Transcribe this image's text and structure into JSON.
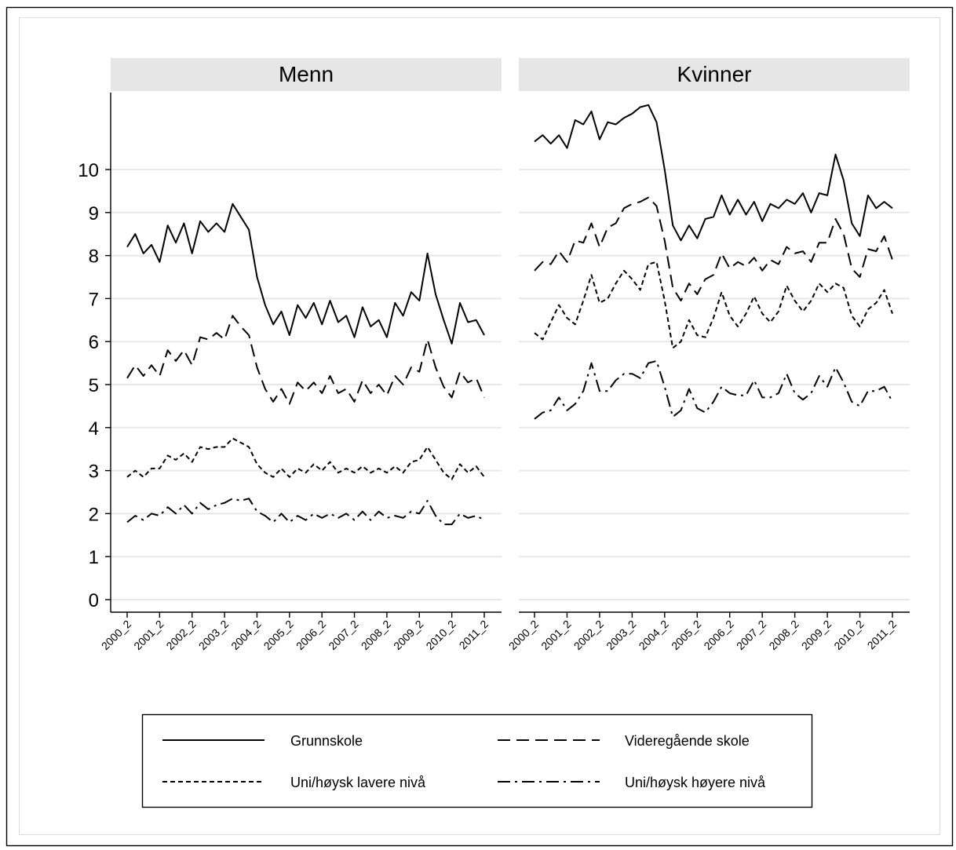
{
  "panels": [
    {
      "title": "Menn"
    },
    {
      "title": "Kvinner"
    }
  ],
  "y_ticks": [
    0,
    1,
    2,
    3,
    4,
    5,
    6,
    7,
    8,
    9,
    10
  ],
  "x_ticks": [
    "2000_2",
    "2001_2",
    "2002_2",
    "2003_2",
    "2004_2",
    "2005_2",
    "2006_2",
    "2007_2",
    "2008_2",
    "2009_2",
    "2010_2",
    "2011_2"
  ],
  "legend": {
    "items": [
      {
        "label": "Grunnskole",
        "dash": "solid"
      },
      {
        "label": "Videregående skole",
        "dash": "longdash"
      },
      {
        "label": "Uni/høysk lavere nivå",
        "dash": "shortdash"
      },
      {
        "label": "Uni/høysk høyere nivå",
        "dash": "dashdot"
      }
    ]
  },
  "chart_data": [
    {
      "type": "line",
      "title": "Menn",
      "x": [
        "2000_2",
        "2000_3",
        "2000_4",
        "2001_1",
        "2001_2",
        "2001_3",
        "2001_4",
        "2002_1",
        "2002_2",
        "2002_3",
        "2002_4",
        "2003_1",
        "2003_2",
        "2003_3",
        "2003_4",
        "2004_1",
        "2004_2",
        "2004_3",
        "2004_4",
        "2005_1",
        "2005_2",
        "2005_3",
        "2005_4",
        "2006_1",
        "2006_2",
        "2006_3",
        "2006_4",
        "2007_1",
        "2007_2",
        "2007_3",
        "2007_4",
        "2008_1",
        "2008_2",
        "2008_3",
        "2008_4",
        "2009_1",
        "2009_2",
        "2009_3",
        "2009_4",
        "2010_1",
        "2010_2",
        "2010_3",
        "2010_4",
        "2011_1",
        "2011_2"
      ],
      "ylim": [
        0,
        11
      ],
      "series": [
        {
          "name": "Grunnskole",
          "values": [
            8.2,
            8.5,
            8.05,
            8.25,
            7.85,
            8.7,
            8.3,
            8.75,
            8.05,
            8.8,
            8.55,
            8.75,
            8.55,
            9.2,
            8.9,
            8.6,
            7.5,
            6.85,
            6.4,
            6.7,
            6.15,
            6.85,
            6.55,
            6.9,
            6.4,
            6.95,
            6.45,
            6.6,
            6.1,
            6.8,
            6.35,
            6.5,
            6.1,
            6.9,
            6.6,
            7.15,
            6.95,
            8.05,
            7.1,
            6.5,
            5.95,
            6.9,
            6.45,
            6.5,
            6.15
          ]
        },
        {
          "name": "Videregående skole",
          "values": [
            5.15,
            5.45,
            5.2,
            5.45,
            5.2,
            5.8,
            5.55,
            5.8,
            5.45,
            6.1,
            6.05,
            6.2,
            6.05,
            6.6,
            6.35,
            6.15,
            5.4,
            4.9,
            4.6,
            4.9,
            4.55,
            5.05,
            4.85,
            5.05,
            4.8,
            5.2,
            4.8,
            4.9,
            4.6,
            5.1,
            4.8,
            5.0,
            4.75,
            5.2,
            5.0,
            5.4,
            5.3,
            6.05,
            5.4,
            4.95,
            4.7,
            5.3,
            5.05,
            5.15,
            4.7
          ]
        },
        {
          "name": "Uni/høysk lavere nivå",
          "values": [
            2.85,
            3.0,
            2.85,
            3.05,
            3.05,
            3.35,
            3.25,
            3.4,
            3.2,
            3.55,
            3.5,
            3.55,
            3.55,
            3.75,
            3.65,
            3.55,
            3.15,
            2.95,
            2.85,
            3.05,
            2.85,
            3.05,
            2.95,
            3.15,
            3.0,
            3.2,
            2.95,
            3.05,
            2.95,
            3.1,
            2.95,
            3.05,
            2.95,
            3.1,
            2.95,
            3.2,
            3.25,
            3.55,
            3.25,
            2.95,
            2.8,
            3.15,
            2.95,
            3.1,
            2.85
          ]
        },
        {
          "name": "Uni/høysk høyere nivå",
          "values": [
            1.8,
            1.95,
            1.85,
            2.0,
            1.95,
            2.15,
            2.0,
            2.2,
            2.0,
            2.25,
            2.1,
            2.2,
            2.25,
            2.35,
            2.3,
            2.35,
            2.05,
            1.95,
            1.8,
            2.0,
            1.8,
            1.95,
            1.85,
            2.0,
            1.9,
            2.0,
            1.9,
            2.0,
            1.85,
            2.05,
            1.85,
            2.05,
            1.9,
            1.95,
            1.9,
            2.05,
            2.0,
            2.3,
            1.95,
            1.75,
            1.75,
            2.0,
            1.9,
            1.95,
            1.85
          ]
        }
      ]
    },
    {
      "type": "line",
      "title": "Kvinner",
      "x": [
        "2000_2",
        "2000_3",
        "2000_4",
        "2001_1",
        "2001_2",
        "2001_3",
        "2001_4",
        "2002_1",
        "2002_2",
        "2002_3",
        "2002_4",
        "2003_1",
        "2003_2",
        "2003_3",
        "2003_4",
        "2004_1",
        "2004_2",
        "2004_3",
        "2004_4",
        "2005_1",
        "2005_2",
        "2005_3",
        "2005_4",
        "2006_1",
        "2006_2",
        "2006_3",
        "2006_4",
        "2007_1",
        "2007_2",
        "2007_3",
        "2007_4",
        "2008_1",
        "2008_2",
        "2008_3",
        "2008_4",
        "2009_1",
        "2009_2",
        "2009_3",
        "2009_4",
        "2010_1",
        "2010_2",
        "2010_3",
        "2010_4",
        "2011_1",
        "2011_2"
      ],
      "ylim": [
        0,
        11
      ],
      "series": [
        {
          "name": "Grunnskole",
          "values": [
            10.65,
            10.8,
            10.6,
            10.8,
            10.5,
            11.15,
            11.05,
            11.35,
            10.7,
            11.1,
            11.05,
            11.2,
            11.3,
            11.45,
            11.5,
            11.1,
            10.0,
            8.7,
            8.35,
            8.7,
            8.4,
            8.85,
            8.9,
            9.4,
            8.95,
            9.3,
            8.95,
            9.25,
            8.8,
            9.2,
            9.1,
            9.3,
            9.2,
            9.45,
            9.0,
            9.45,
            9.4,
            10.35,
            9.75,
            8.75,
            8.45,
            9.4,
            9.1,
            9.25,
            9.1
          ]
        },
        {
          "name": "Videregående skole",
          "values": [
            7.65,
            7.85,
            7.8,
            8.1,
            7.85,
            8.35,
            8.3,
            8.75,
            8.2,
            8.65,
            8.75,
            9.1,
            9.2,
            9.25,
            9.35,
            9.15,
            8.35,
            7.25,
            6.95,
            7.35,
            7.1,
            7.45,
            7.55,
            8.05,
            7.7,
            7.85,
            7.75,
            7.95,
            7.65,
            7.9,
            7.8,
            8.2,
            8.05,
            8.1,
            7.85,
            8.3,
            8.3,
            8.85,
            8.5,
            7.7,
            7.5,
            8.15,
            8.1,
            8.45,
            7.9
          ]
        },
        {
          "name": "Uni/høysk lavere nivå",
          "values": [
            6.2,
            6.05,
            6.45,
            6.85,
            6.55,
            6.4,
            6.95,
            7.55,
            6.9,
            7.0,
            7.35,
            7.65,
            7.45,
            7.2,
            7.8,
            7.85,
            6.95,
            5.85,
            6.0,
            6.5,
            6.15,
            6.1,
            6.55,
            7.15,
            6.6,
            6.35,
            6.65,
            7.05,
            6.65,
            6.45,
            6.7,
            7.3,
            6.95,
            6.7,
            6.95,
            7.35,
            7.15,
            7.35,
            7.25,
            6.6,
            6.35,
            6.75,
            6.9,
            7.2,
            6.65
          ]
        },
        {
          "name": "Uni/høysk høyere nivå",
          "values": [
            4.2,
            4.35,
            4.4,
            4.7,
            4.4,
            4.55,
            4.85,
            5.5,
            4.85,
            4.85,
            5.1,
            5.25,
            5.25,
            5.15,
            5.5,
            5.55,
            4.95,
            4.25,
            4.4,
            4.9,
            4.45,
            4.35,
            4.6,
            4.95,
            4.8,
            4.75,
            4.75,
            5.1,
            4.7,
            4.7,
            4.8,
            5.25,
            4.8,
            4.65,
            4.8,
            5.2,
            4.95,
            5.4,
            5.05,
            4.6,
            4.5,
            4.85,
            4.85,
            4.95,
            4.6
          ]
        }
      ]
    }
  ]
}
